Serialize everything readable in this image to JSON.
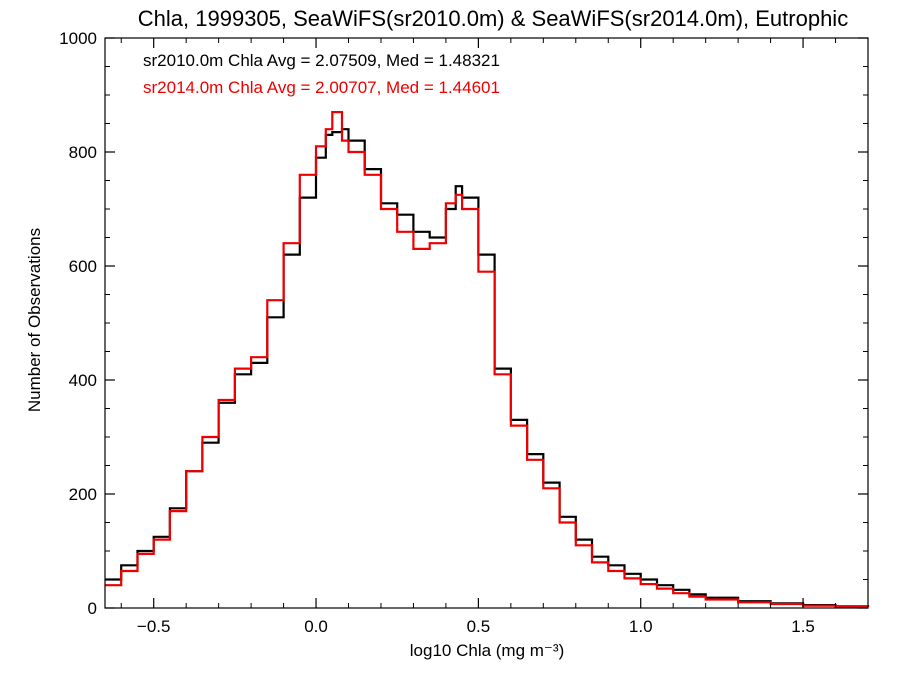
{
  "chart_data": {
    "type": "line",
    "title": "Chla, 1999305, SeaWiFS(sr2010.0m) & SeaWiFS(sr2014.0m), Eutrophic",
    "xlabel": "log10 Chla (mg m⁻³)",
    "ylabel": "Number of Observations",
    "xlim": [
      -0.65,
      1.7
    ],
    "ylim": [
      0,
      1000
    ],
    "xticks": [
      -0.5,
      0.0,
      0.5,
      1.0,
      1.5
    ],
    "xtick_labels": [
      "−0.5",
      "0.0",
      "0.5",
      "1.0",
      "1.5"
    ],
    "yticks": [
      0,
      200,
      400,
      600,
      800,
      1000
    ],
    "ytick_labels": [
      "0",
      "200",
      "400",
      "600",
      "800",
      "1000"
    ],
    "grid": false,
    "annotations": [
      {
        "text": "sr2010.0m Chla Avg = 2.07509, Med = 1.48321",
        "color": "#000000"
      },
      {
        "text": "sr2014.0m Chla Avg = 2.00707, Med = 1.44601",
        "color": "#ee0000"
      }
    ],
    "series": [
      {
        "color": "#000000",
        "x": [
          -0.65,
          -0.6,
          -0.55,
          -0.5,
          -0.45,
          -0.4,
          -0.35,
          -0.3,
          -0.25,
          -0.2,
          -0.15,
          -0.1,
          -0.05,
          0.0,
          0.03,
          0.05,
          0.08,
          0.1,
          0.15,
          0.2,
          0.25,
          0.3,
          0.35,
          0.4,
          0.43,
          0.45,
          0.5,
          0.55,
          0.6,
          0.65,
          0.7,
          0.75,
          0.8,
          0.85,
          0.9,
          0.95,
          1.0,
          1.05,
          1.1,
          1.15,
          1.2,
          1.3,
          1.4,
          1.5,
          1.6,
          1.7
        ],
        "values": [
          50,
          75,
          100,
          125,
          175,
          240,
          290,
          360,
          410,
          430,
          510,
          620,
          720,
          790,
          830,
          835,
          840,
          820,
          770,
          710,
          690,
          660,
          650,
          700,
          740,
          720,
          620,
          420,
          330,
          270,
          220,
          160,
          120,
          90,
          75,
          60,
          50,
          40,
          32,
          24,
          18,
          12,
          8,
          5,
          3,
          2
        ]
      },
      {
        "color": "#ee0000",
        "x": [
          -0.65,
          -0.6,
          -0.55,
          -0.5,
          -0.45,
          -0.4,
          -0.35,
          -0.3,
          -0.25,
          -0.2,
          -0.15,
          -0.1,
          -0.05,
          0.0,
          0.03,
          0.05,
          0.08,
          0.1,
          0.15,
          0.2,
          0.25,
          0.3,
          0.35,
          0.4,
          0.43,
          0.45,
          0.5,
          0.55,
          0.6,
          0.65,
          0.7,
          0.75,
          0.8,
          0.85,
          0.9,
          0.95,
          1.0,
          1.05,
          1.1,
          1.15,
          1.2,
          1.3,
          1.4,
          1.5,
          1.6,
          1.7
        ],
        "values": [
          40,
          65,
          95,
          120,
          170,
          240,
          300,
          365,
          420,
          440,
          540,
          640,
          760,
          810,
          840,
          870,
          820,
          800,
          760,
          700,
          660,
          630,
          640,
          710,
          725,
          700,
          590,
          410,
          320,
          260,
          210,
          150,
          110,
          80,
          65,
          52,
          42,
          34,
          26,
          20,
          15,
          10,
          7,
          4,
          3,
          2
        ]
      }
    ]
  }
}
